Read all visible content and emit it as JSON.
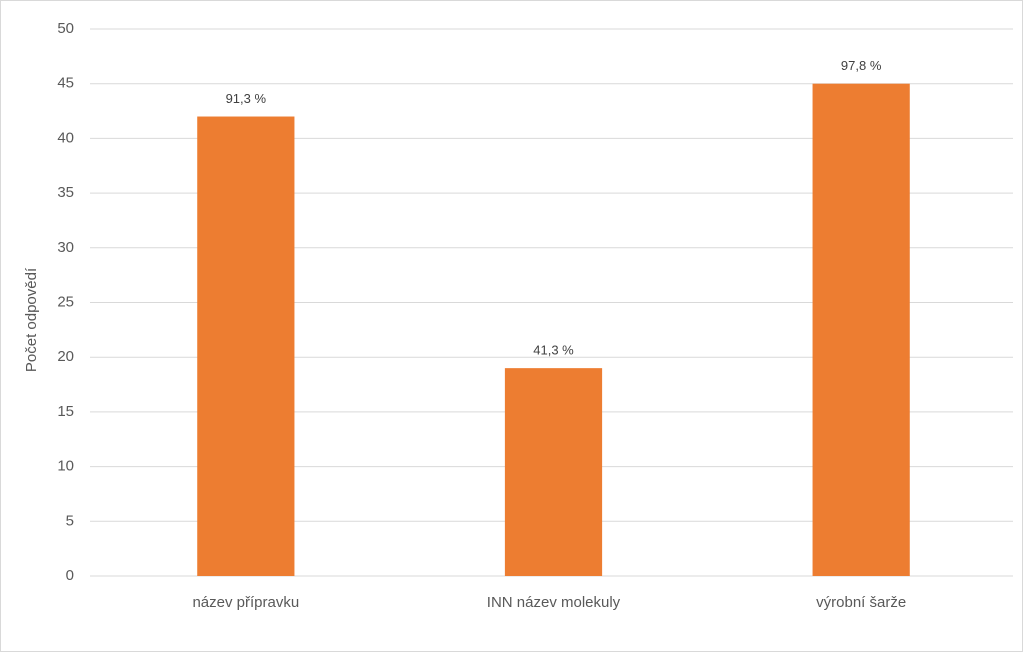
{
  "chart_data": {
    "type": "bar",
    "y_label": "Počet odpovědí",
    "categories": [
      "název přípravku",
      "INN název molekuly",
      "výrobní šarže"
    ],
    "values": [
      42,
      19,
      45
    ],
    "annotations": [
      "91,3 %",
      "41,3 %",
      "97,8 %"
    ],
    "color": "#ed7d31",
    "ylim": [
      0,
      50
    ],
    "yticks": [
      0,
      5,
      10,
      15,
      20,
      25,
      30,
      35,
      40,
      45,
      50
    ],
    "grid": true
  }
}
